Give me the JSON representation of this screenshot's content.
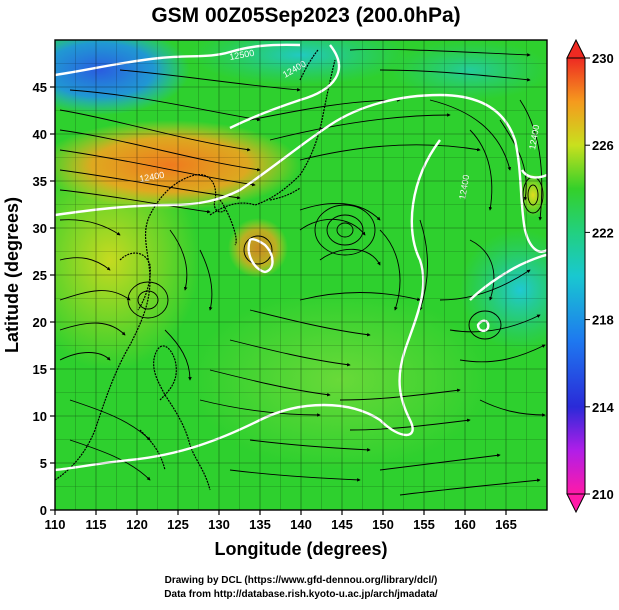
{
  "title": "GSM 00Z05Sep2023 (200.0hPa)",
  "xlabel": "Longitude (degrees)",
  "ylabel": "Latitude  (degrees)",
  "x_ticks": [
    "110",
    "115",
    "120",
    "125",
    "130",
    "135",
    "140",
    "145",
    "150",
    "155",
    "160",
    "165"
  ],
  "y_ticks": [
    "0",
    "5",
    "10",
    "15",
    "20",
    "25",
    "30",
    "35",
    "40",
    "45"
  ],
  "lon_range": [
    110,
    170
  ],
  "lat_range": [
    0,
    50
  ],
  "colorbar": {
    "labels": [
      "210",
      "214",
      "218",
      "222",
      "226",
      "230"
    ],
    "range": [
      210,
      230
    ]
  },
  "contour_labels": [
    "12400",
    "12400",
    "12500",
    "12400",
    "12400"
  ],
  "credits": [
    "Drawing by DCL (https://www.gfd-dennou.org/library/dcl/)",
    "Data from http://database.rish.kyoto-u.ac.jp/arch/jmadata/"
  ],
  "colors": {
    "main_field": "#2ed02e",
    "warm_field": "#f07b1e",
    "cool_field": "#1aa8f0",
    "cold_field": "#2060e0",
    "contour": "#ffffff"
  }
}
